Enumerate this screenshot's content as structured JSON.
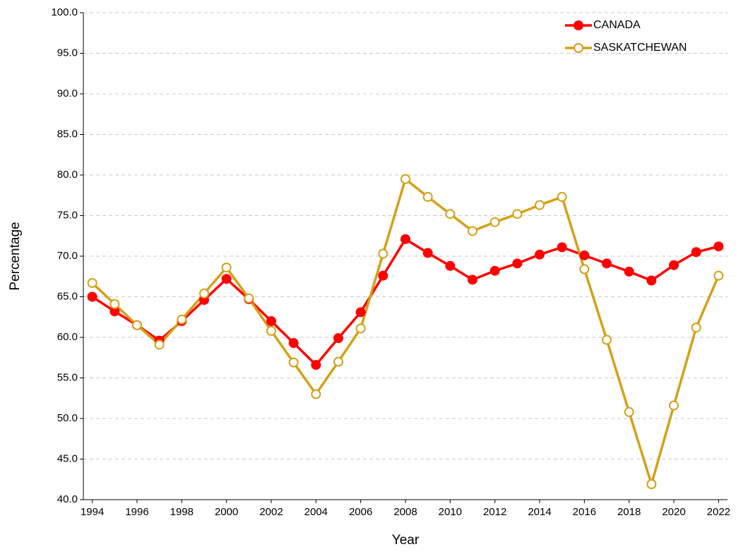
{
  "chart_data": {
    "type": "line",
    "x_label": "Year",
    "y_label": "Percentage",
    "x": [
      1994,
      1995,
      1996,
      1997,
      1998,
      1999,
      2000,
      2001,
      2002,
      2003,
      2004,
      2005,
      2006,
      2007,
      2008,
      2009,
      2010,
      2011,
      2012,
      2013,
      2014,
      2015,
      2016,
      2017,
      2018,
      2019,
      2020,
      2021,
      2022
    ],
    "series": [
      {
        "name": "CANADA",
        "color": "#ff0000",
        "marker": "filled",
        "values": [
          65.0,
          63.2,
          61.5,
          59.6,
          62.0,
          64.6,
          67.2,
          64.7,
          62.0,
          59.3,
          56.6,
          59.9,
          63.1,
          67.6,
          72.1,
          70.4,
          68.8,
          67.1,
          68.2,
          69.1,
          70.2,
          71.1,
          70.1,
          69.1,
          68.1,
          67.0,
          68.9,
          70.5,
          71.2
        ]
      },
      {
        "name": "SASKATCHEWAN",
        "color": "#d4a017",
        "marker": "hollow",
        "values": [
          66.7,
          64.1,
          61.5,
          59.1,
          62.2,
          65.4,
          68.6,
          64.8,
          60.8,
          56.9,
          53.0,
          57.0,
          61.1,
          70.3,
          79.5,
          77.3,
          75.2,
          73.1,
          74.2,
          75.2,
          76.3,
          77.3,
          68.4,
          59.7,
          50.8,
          41.9,
          51.6,
          61.2,
          67.6
        ]
      }
    ],
    "xlim": [
      1993.6,
      2022.4
    ],
    "xticks": [
      1994,
      1996,
      1998,
      2000,
      2002,
      2004,
      2006,
      2008,
      2010,
      2012,
      2014,
      2016,
      2018,
      2020,
      2022
    ],
    "ylim": [
      40,
      100
    ],
    "yticks": [
      {
        "value": 40,
        "label": "40.0"
      },
      {
        "value": 45,
        "label": "45.0"
      },
      {
        "value": 50,
        "label": "50.0"
      },
      {
        "value": 55,
        "label": "55.0"
      },
      {
        "value": 60,
        "label": "60.0"
      },
      {
        "value": 65,
        "label": "65.0"
      },
      {
        "value": 70,
        "label": "70.0"
      },
      {
        "value": 75,
        "label": "75.0"
      },
      {
        "value": 80,
        "label": "80.0"
      },
      {
        "value": 85,
        "label": "85.0"
      },
      {
        "value": 90,
        "label": "90.0"
      },
      {
        "value": 95,
        "label": "95.0"
      },
      {
        "value": 100,
        "label": "100.0"
      }
    ],
    "grid": true,
    "legend": "top-right"
  }
}
